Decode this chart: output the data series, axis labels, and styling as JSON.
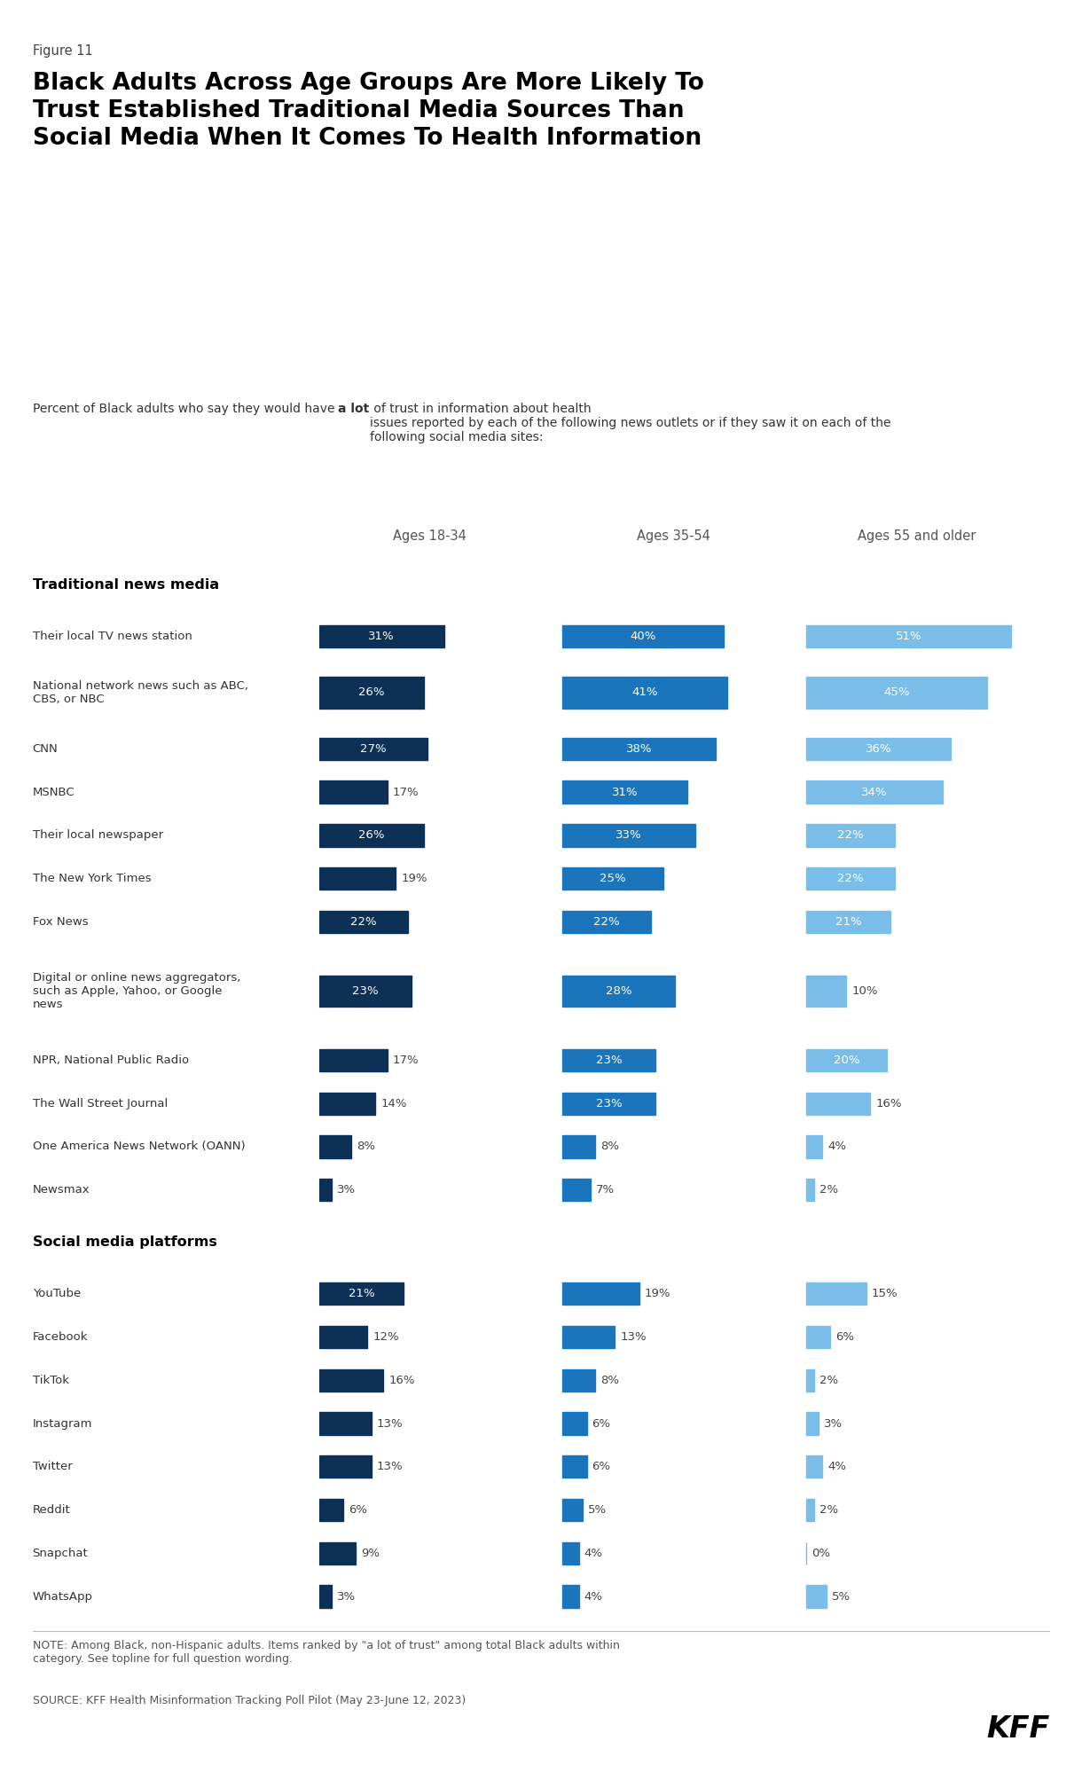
{
  "figure_label": "Figure 11",
  "title_line1": "Black Adults Across Age Groups Are More Likely To",
  "title_line2": "Trust Established Traditional Media Sources Than",
  "title_line3": "Social Media When It Comes To Health Information",
  "subtitle_normal": "Percent of Black adults who say they would have ",
  "subtitle_bold": "a lot",
  "subtitle_end": " of trust in information about health\nissues reported by each of the following news outlets or if they saw it on each of the\nfollowing social media sites:",
  "age_groups": [
    "Ages 18-34",
    "Ages 35-54",
    "Ages 55 and older"
  ],
  "colors": [
    "#0d3057",
    "#1b75bc",
    "#7abde8"
  ],
  "categories": [
    "Their local TV news station",
    "National network news such as ABC,\nCBS, or NBC",
    "CNN",
    "MSNBC",
    "Their local newspaper",
    "The New York Times",
    "Fox News",
    "Digital or online news aggregators,\nsuch as Apple, Yahoo, or Google\nnews",
    "NPR, National Public Radio",
    "The Wall Street Journal",
    "One America News Network (OANN)",
    "Newsmax",
    "YouTube",
    "Facebook",
    "TikTok",
    "Instagram",
    "Twitter",
    "Reddit",
    "Snapchat",
    "WhatsApp"
  ],
  "values_18_34": [
    31,
    26,
    27,
    17,
    26,
    19,
    22,
    23,
    17,
    14,
    8,
    3,
    21,
    12,
    16,
    13,
    13,
    6,
    9,
    3
  ],
  "values_35_54": [
    40,
    41,
    38,
    31,
    33,
    25,
    22,
    28,
    23,
    23,
    8,
    7,
    19,
    13,
    8,
    6,
    6,
    5,
    4,
    4
  ],
  "values_55_plus": [
    51,
    45,
    36,
    34,
    22,
    22,
    21,
    10,
    20,
    16,
    4,
    2,
    15,
    6,
    2,
    3,
    4,
    2,
    0,
    5
  ],
  "note_line1": "NOTE: Among Black, non-Hispanic adults. Items ranked by \"a lot of trust\" among total Black adults within",
  "note_line2": "category. See topline for full question wording.",
  "source": "SOURCE: KFF Health Misinformation Tracking Poll Pilot (May 23-June 12, 2023)",
  "traditional_header": "Traditional news media",
  "social_header": "Social media platforms"
}
